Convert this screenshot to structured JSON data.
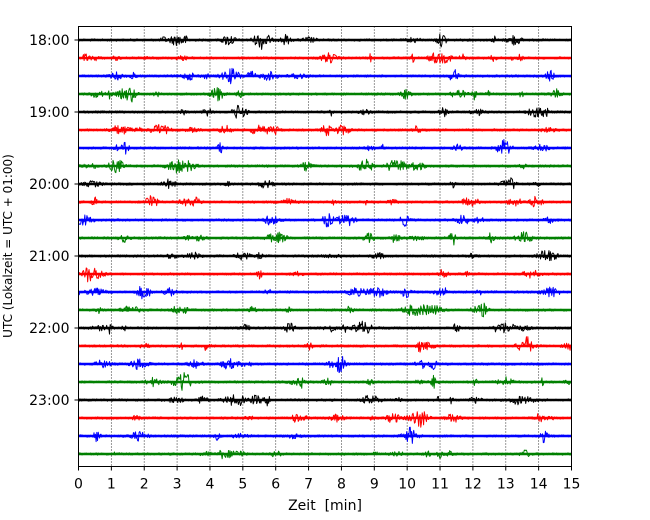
{
  "chart_data": {
    "type": "line",
    "title": "",
    "xlabel": "Zeit  [min]",
    "ylabel": "UTC (Lokalzeit = UTC + 01:00)",
    "xlim": [
      0,
      15
    ],
    "x_ticks": [
      "0",
      "1",
      "2",
      "3",
      "4",
      "5",
      "6",
      "7",
      "8",
      "9",
      "10",
      "11",
      "12",
      "13",
      "14",
      "15"
    ],
    "y_tick_labels": [
      "18:00",
      "19:00",
      "20:00",
      "21:00",
      "22:00",
      "23:00"
    ],
    "x_grid": true,
    "trace_colors": [
      "#000000",
      "#ff0000",
      "#0000ff",
      "#008000"
    ],
    "traces": [
      {
        "start": "18:00",
        "color": "#000000"
      },
      {
        "start": "18:15",
        "color": "#ff0000"
      },
      {
        "start": "18:30",
        "color": "#0000ff"
      },
      {
        "start": "18:45",
        "color": "#008000"
      },
      {
        "start": "19:00",
        "color": "#000000"
      },
      {
        "start": "19:15",
        "color": "#ff0000"
      },
      {
        "start": "19:30",
        "color": "#0000ff"
      },
      {
        "start": "19:45",
        "color": "#008000"
      },
      {
        "start": "20:00",
        "color": "#000000"
      },
      {
        "start": "20:15",
        "color": "#ff0000"
      },
      {
        "start": "20:30",
        "color": "#0000ff"
      },
      {
        "start": "20:45",
        "color": "#008000"
      },
      {
        "start": "21:00",
        "color": "#000000"
      },
      {
        "start": "21:15",
        "color": "#ff0000"
      },
      {
        "start": "21:30",
        "color": "#0000ff"
      },
      {
        "start": "21:45",
        "color": "#008000"
      },
      {
        "start": "22:00",
        "color": "#000000"
      },
      {
        "start": "22:15",
        "color": "#ff0000"
      },
      {
        "start": "22:30",
        "color": "#0000ff"
      },
      {
        "start": "22:45",
        "color": "#008000"
      },
      {
        "start": "23:00",
        "color": "#000000"
      },
      {
        "start": "23:15",
        "color": "#ff0000"
      },
      {
        "start": "23:30",
        "color": "#0000ff"
      },
      {
        "start": "23:45",
        "color": "#008000"
      }
    ]
  }
}
